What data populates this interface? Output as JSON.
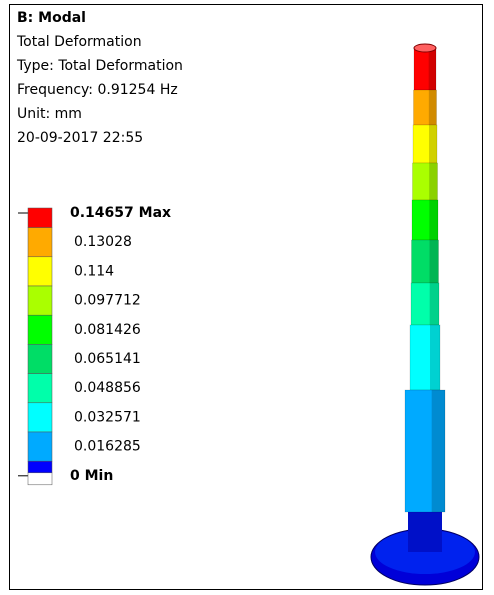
{
  "header": {
    "title": "B: Modal",
    "lines": [
      "Total Deformation",
      "Type: Total Deformation",
      "Frequency: 0.91254 Hz",
      "Unit: mm",
      "20-09-2017 22:55"
    ]
  },
  "legend": {
    "labels": [
      "0.14657 Max",
      "0.13028",
      "0.114",
      "0.097712",
      "0.081426",
      "0.065141",
      "0.048856",
      "0.032571",
      "0.016285",
      "0 Min"
    ],
    "colors": [
      "#ff0000",
      "#ffaa00",
      "#ffff00",
      "#aaff00",
      "#00ff00",
      "#00dd66",
      "#00ffaa",
      "#00ffff",
      "#00aaff",
      "#0000ff"
    ]
  }
}
